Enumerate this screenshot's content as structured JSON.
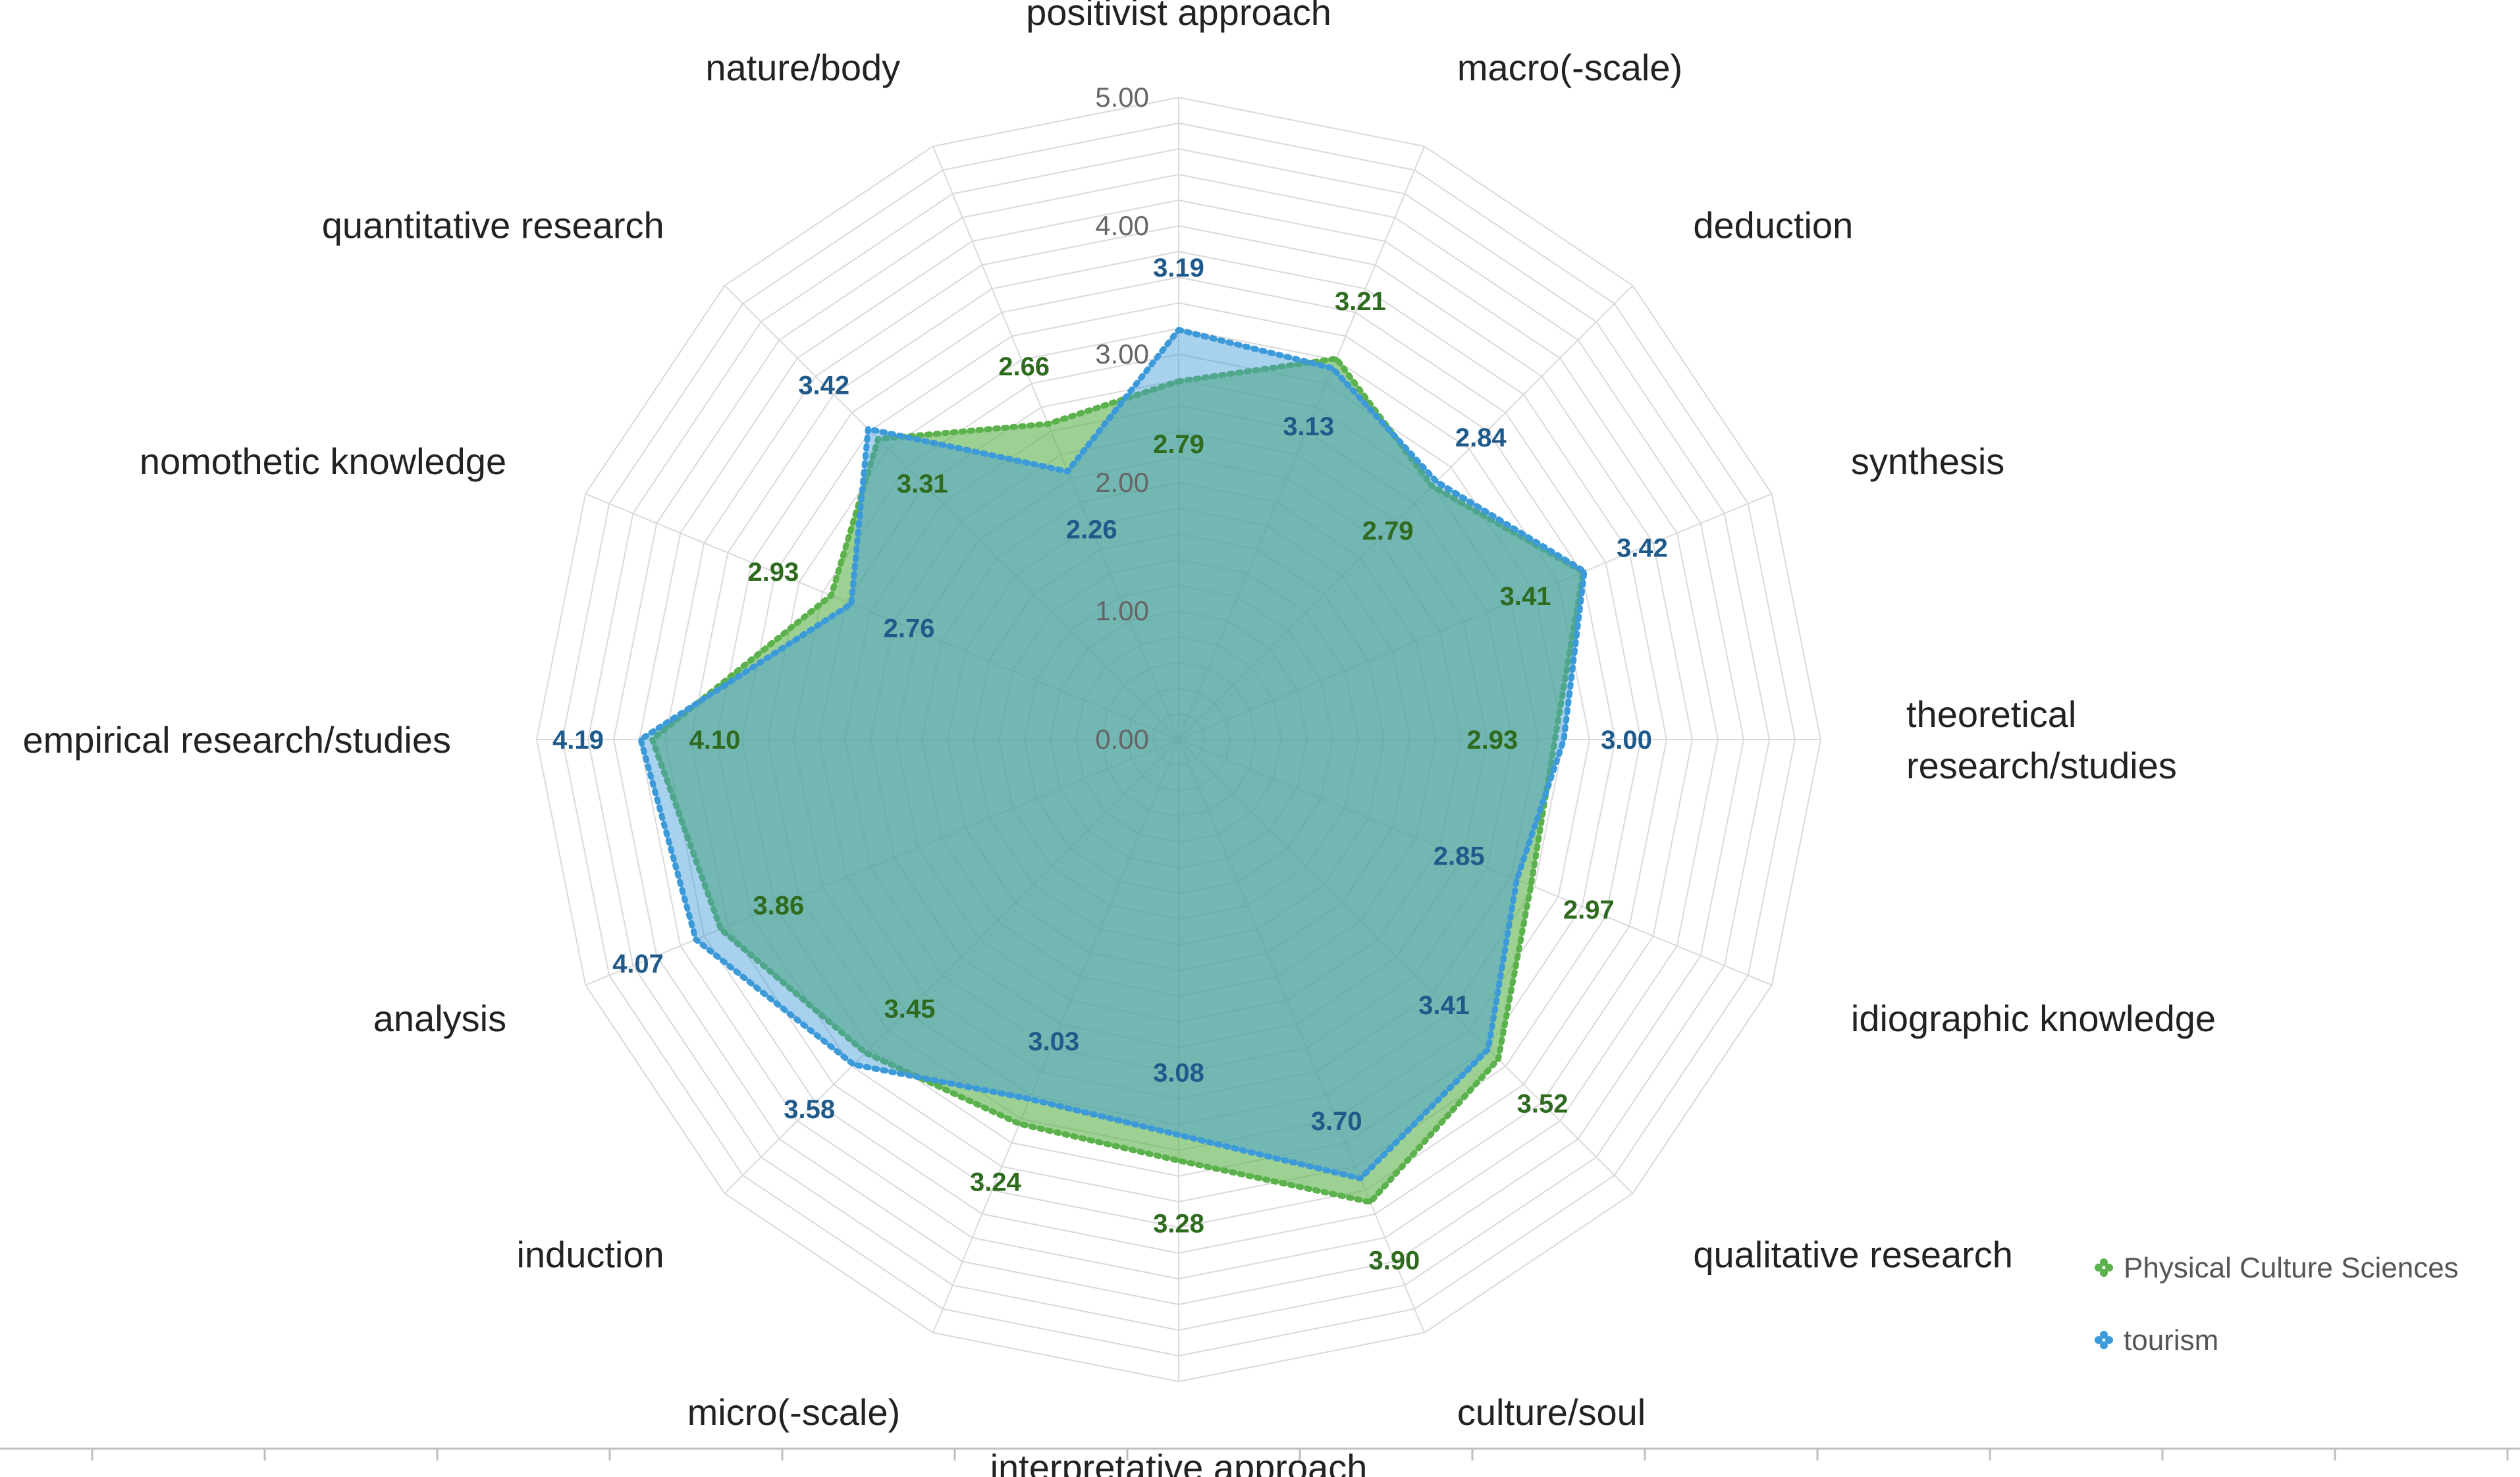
{
  "colors": {
    "series_a": "#5bb14b",
    "series_b": "#3d9ad9",
    "grid": "#d9d9d9",
    "label_a": "#2e6b1f",
    "label_b": "#1f5a8a"
  },
  "chart_data": {
    "type": "radar",
    "title": "",
    "categories": [
      "positivist approach",
      "macro(-scale)",
      "deduction",
      "synthesis",
      "theoretical research/studies",
      "idiographic knowledge",
      "qualitative research",
      "culture/soul",
      "interpretative approach",
      "micro(-scale)",
      "induction",
      "analysis",
      "empirical research/studies",
      "nomothetic knowledge",
      "quantitative research",
      "nature/body"
    ],
    "category_lines": [
      [
        "positivist approach"
      ],
      [
        "macro(-scale)"
      ],
      [
        "deduction"
      ],
      [
        "synthesis"
      ],
      [
        "theoretical",
        "research/studies"
      ],
      [
        "idiographic knowledge"
      ],
      [
        "qualitative research"
      ],
      [
        "culture/soul"
      ],
      [
        "interpretative approach"
      ],
      [
        "micro(-scale)"
      ],
      [
        "induction"
      ],
      [
        "analysis"
      ],
      [
        "empirical research/studies"
      ],
      [
        "nomothetic knowledge"
      ],
      [
        "quantitative research"
      ],
      [
        "nature/body"
      ]
    ],
    "series": [
      {
        "name": "Physical Culture Sciences",
        "values": [
          2.79,
          3.21,
          2.79,
          3.41,
          2.93,
          2.97,
          3.52,
          3.9,
          3.28,
          3.24,
          3.45,
          3.86,
          4.1,
          2.93,
          3.31,
          2.66
        ],
        "value_labels": [
          "2.79",
          "3.21",
          "2.79",
          "3.41",
          "2.93",
          "2.97",
          "3.52",
          "3.90",
          "3.28",
          "3.24",
          "3.45",
          "3.86",
          "4.10",
          "2.93",
          "3.31",
          "2.66"
        ]
      },
      {
        "name": "tourism",
        "values": [
          3.19,
          3.13,
          2.84,
          3.42,
          3.0,
          2.85,
          3.41,
          3.7,
          3.08,
          3.03,
          3.58,
          4.07,
          4.19,
          2.76,
          3.42,
          2.26
        ],
        "value_labels": [
          "3.19",
          "3.13",
          "2.84",
          "3.42",
          "3.00",
          "2.85",
          "3.41",
          "3.70",
          "3.08",
          "3.03",
          "3.58",
          "4.07",
          "4.19",
          "2.76",
          "3.42",
          "2.26"
        ]
      }
    ],
    "r_axis": {
      "range": [
        0,
        5
      ],
      "tick_labels": [
        "0.00",
        "1.00",
        "2.00",
        "3.00",
        "4.00",
        "5.00"
      ],
      "minor_step": 0.2
    },
    "legend": {
      "position": "bottom-right",
      "entries": [
        "Physical Culture Sciences",
        "tourism"
      ]
    },
    "grid": true
  }
}
